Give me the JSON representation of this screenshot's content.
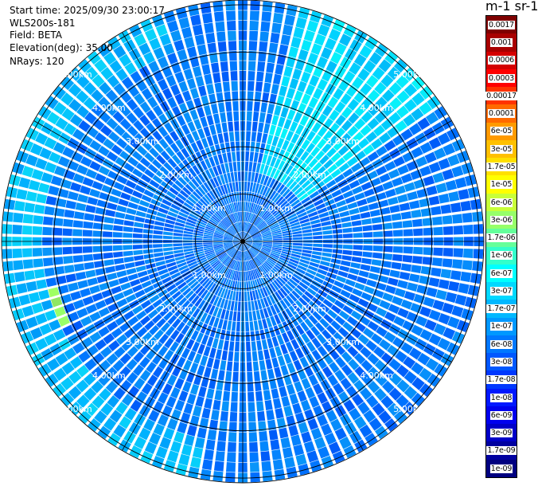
{
  "info": {
    "start_time": "Start time: 2025/09/30 23:00:17",
    "instrument": "WLS200s-181",
    "field": "Field: BETA",
    "elevation": "Elevation(deg): 35.00",
    "nrays": "NRays: 120"
  },
  "colorbar": {
    "unit_label": "m-1 sr-1",
    "ticks": [
      "0.0017",
      "0.001",
      "0.0006",
      "0.0003",
      "0.00017",
      "0.0001",
      "6e-05",
      "3e-05",
      "1.7e-05",
      "1e-05",
      "6e-06",
      "3e-06",
      "1.7e-06",
      "1e-06",
      "6e-07",
      "3e-07",
      "1.7e-07",
      "1e-07",
      "6e-08",
      "3e-08",
      "1.7e-08",
      "1e-08",
      "6e-09",
      "3e-09",
      "1.7e-09",
      "1e-09"
    ],
    "colors": [
      "#7f0000",
      "#a80000",
      "#d40000",
      "#ff0000",
      "#ff3300",
      "#ff6a00",
      "#ff9a00",
      "#ffc000",
      "#ffe000",
      "#ffff00",
      "#c8ff38",
      "#96ff69",
      "#64ff9a",
      "#32ffcb",
      "#00ffff",
      "#00d8ff",
      "#00b8ff",
      "#0098ff",
      "#0078ff",
      "#0058ff",
      "#0038ff",
      "#0018ff",
      "#0000ee",
      "#0000c8",
      "#0000a0",
      "#000080"
    ]
  },
  "chart_data": {
    "type": "heatmap",
    "projection": "polar (PPI)",
    "n_rays": 120,
    "range_rings_km": [
      1.0,
      2.0,
      3.0,
      4.0,
      5.0
    ],
    "range_ring_labels": [
      "1.00km",
      "2.00km",
      "3.00km",
      "4.00km",
      "5.00km"
    ],
    "max_range_km": 5.1,
    "spoke_angles_deg": [
      0,
      30,
      60,
      90,
      120,
      150,
      180,
      210,
      240,
      270,
      300,
      330
    ],
    "field": "BETA",
    "typical_value": "6e-08",
    "regions": [
      {
        "azimuth_deg": [
          15,
          55
        ],
        "range_km": [
          1.5,
          5.1
        ],
        "value": "3e-07"
      },
      {
        "azimuth_deg": [
          245,
          255
        ],
        "range_km": [
          4.0,
          4.8
        ],
        "value": "3e-06"
      },
      {
        "azimuth_deg": [
          190,
          340
        ],
        "range_km": [
          4.2,
          5.1
        ],
        "value": "1.7e-07"
      }
    ]
  }
}
